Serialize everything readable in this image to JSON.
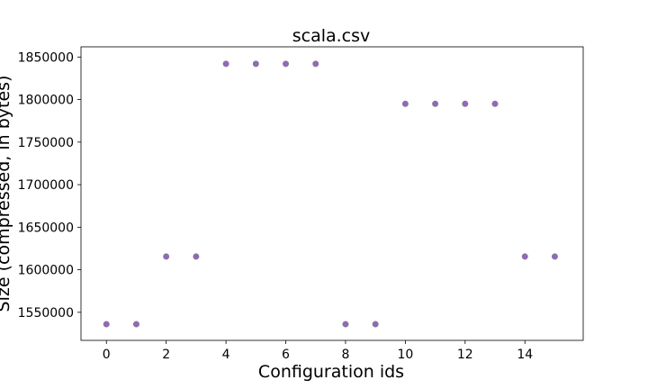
{
  "chart_data": {
    "type": "scatter",
    "title": "scala.csv",
    "xlabel": "Configuration ids",
    "ylabel": "Size (compressed, in bytes)",
    "xlim": [
      -0.85,
      15.95
    ],
    "ylim": [
      1517000,
      1862000
    ],
    "x_ticks": [
      0,
      2,
      4,
      6,
      8,
      10,
      12,
      14
    ],
    "y_ticks": [
      1550000,
      1600000,
      1650000,
      1700000,
      1750000,
      1800000,
      1850000
    ],
    "grid": false,
    "legend": "none",
    "marker_color": "#9467bd",
    "marker_edge_color": "#7f7f7f",
    "x": [
      0,
      1,
      2,
      3,
      4,
      5,
      6,
      7,
      8,
      9,
      10,
      11,
      12,
      13,
      14,
      15
    ],
    "y": [
      1536000,
      1536000,
      1615500,
      1615500,
      1842000,
      1842000,
      1842000,
      1842000,
      1536000,
      1536000,
      1795000,
      1795000,
      1795000,
      1795000,
      1615500,
      1615500
    ]
  }
}
